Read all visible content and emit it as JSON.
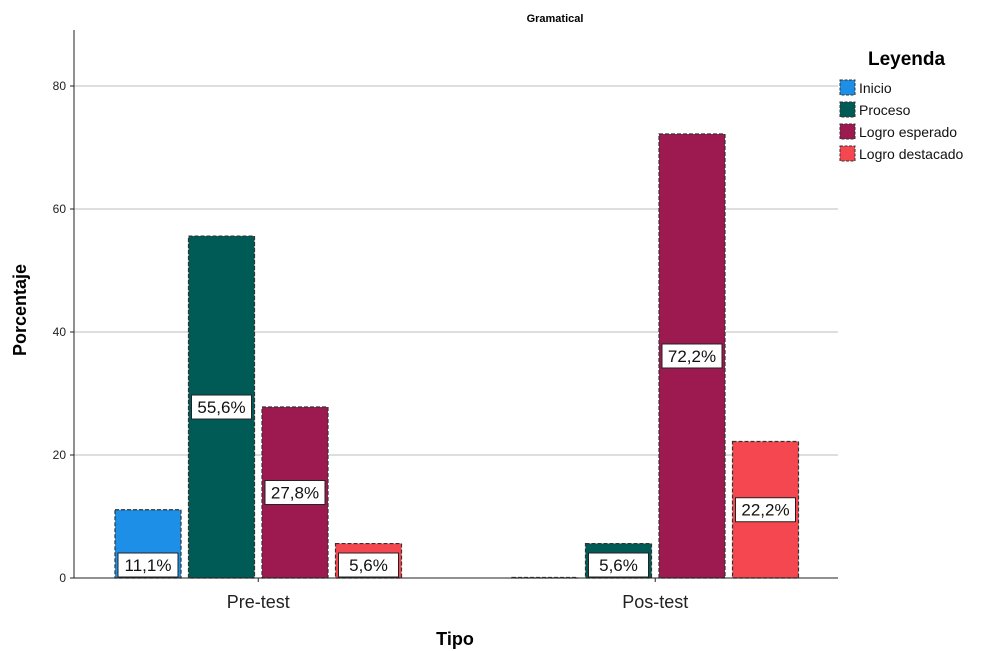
{
  "chart_data": {
    "type": "bar",
    "title": "Gramatical",
    "xlabel": "Tipo",
    "ylabel": "Porcentaje",
    "ylim": [
      0,
      88
    ],
    "yticks": [
      0,
      20,
      40,
      60,
      80
    ],
    "grid": true,
    "legend_title": "Leyenda",
    "legend_position": "top-right",
    "categories": [
      "Pre-test",
      "Pos-test"
    ],
    "series": [
      {
        "name": "Inicio",
        "color": "#1e8fe6",
        "values": [
          11.1,
          0
        ],
        "labels": [
          "11,1%",
          ""
        ]
      },
      {
        "name": "Proceso",
        "color": "#005a55",
        "values": [
          55.6,
          5.6
        ],
        "labels": [
          "55,6%",
          "5,6%"
        ]
      },
      {
        "name": "Logro esperado",
        "color": "#9c1a50",
        "values": [
          27.8,
          72.2
        ],
        "labels": [
          "27,8%",
          "72,2%"
        ]
      },
      {
        "name": "Logro destacado",
        "color": "#f5474f",
        "values": [
          5.6,
          22.2
        ],
        "labels": [
          "5,6%",
          "22,2%"
        ]
      }
    ]
  }
}
